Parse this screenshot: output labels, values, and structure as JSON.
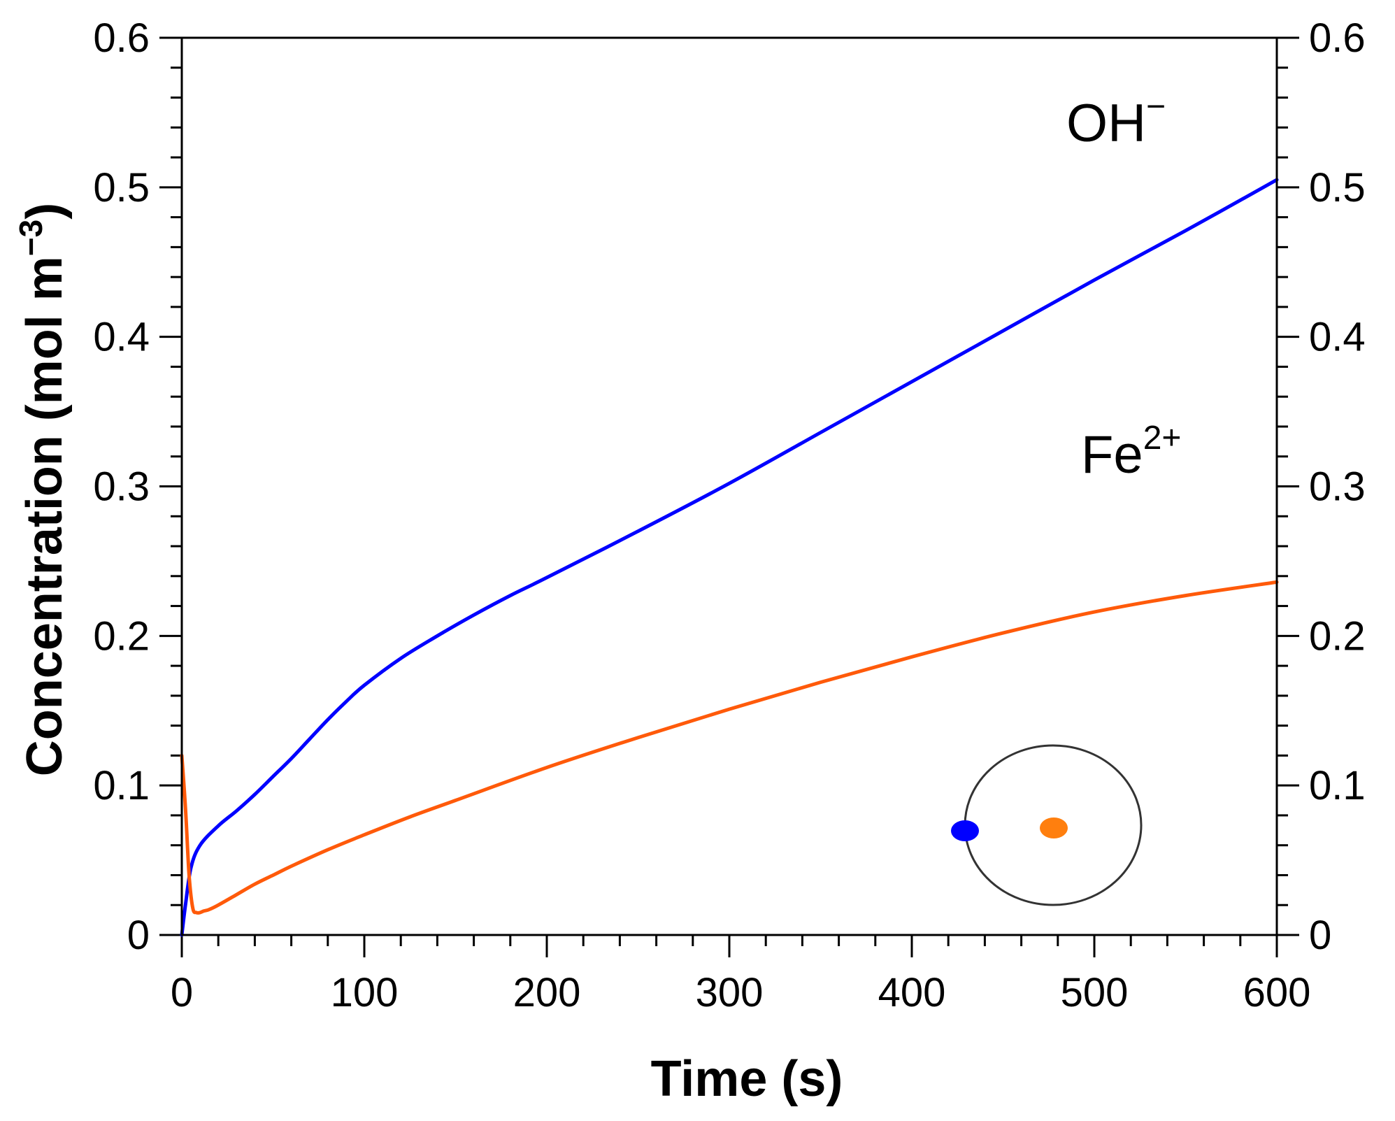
{
  "chart_data": {
    "type": "line",
    "title": "",
    "xlabel": "Time (s)",
    "ylabel_base": "Concentration (mol m",
    "ylabel_exp": "−3",
    "ylabel_close": ")",
    "xlim": [
      0,
      600
    ],
    "ylim": [
      0,
      0.6
    ],
    "xticks": [
      0,
      100,
      200,
      300,
      400,
      500,
      600
    ],
    "xtick_labels": [
      "0",
      "100",
      "200",
      "300",
      "400",
      "500",
      "600"
    ],
    "yticks": [
      0,
      0.1,
      0.2,
      0.3,
      0.4,
      0.5,
      0.6
    ],
    "ytick_labels": [
      "0",
      "0.1",
      "0.2",
      "0.3",
      "0.4",
      "0.5",
      "0.6"
    ],
    "right_ytick_labels": [
      "0",
      "0.1",
      "0.2",
      "0.3",
      "0.4",
      "0.5",
      "0.6"
    ],
    "x_minor_step": 20,
    "y_minor_step": 0.02,
    "series": [
      {
        "name": "OH−",
        "label_base": "OH",
        "label_sup": "−",
        "color": "#0000ff",
        "x": [
          0,
          2,
          5,
          10,
          20,
          30,
          40,
          50,
          60,
          70,
          80,
          90,
          100,
          120,
          140,
          160,
          180,
          200,
          250,
          300,
          350,
          400,
          450,
          500,
          550,
          600
        ],
        "y": [
          0.0,
          0.02,
          0.045,
          0.06,
          0.073,
          0.083,
          0.094,
          0.106,
          0.118,
          0.131,
          0.144,
          0.156,
          0.167,
          0.185,
          0.2,
          0.214,
          0.227,
          0.239,
          0.27,
          0.302,
          0.336,
          0.37,
          0.404,
          0.438,
          0.471,
          0.505
        ]
      },
      {
        "name": "Fe2+",
        "label_base": "Fe",
        "label_sup": "2+",
        "color": "#ff5a0a",
        "x": [
          0,
          2,
          4,
          6,
          8,
          10,
          12,
          15,
          20,
          30,
          40,
          50,
          60,
          80,
          100,
          125,
          150,
          200,
          250,
          300,
          350,
          400,
          450,
          500,
          550,
          600
        ],
        "y": [
          0.12,
          0.085,
          0.04,
          0.018,
          0.015,
          0.015,
          0.016,
          0.017,
          0.02,
          0.027,
          0.034,
          0.04,
          0.046,
          0.057,
          0.067,
          0.079,
          0.09,
          0.112,
          0.132,
          0.151,
          0.169,
          0.186,
          0.202,
          0.216,
          0.227,
          0.236
        ]
      }
    ],
    "legend_placement": "bottom-right",
    "inset": {
      "description": "circle with sampling points",
      "point_colors": [
        "#0000ff",
        "#ff7f0e"
      ]
    }
  }
}
